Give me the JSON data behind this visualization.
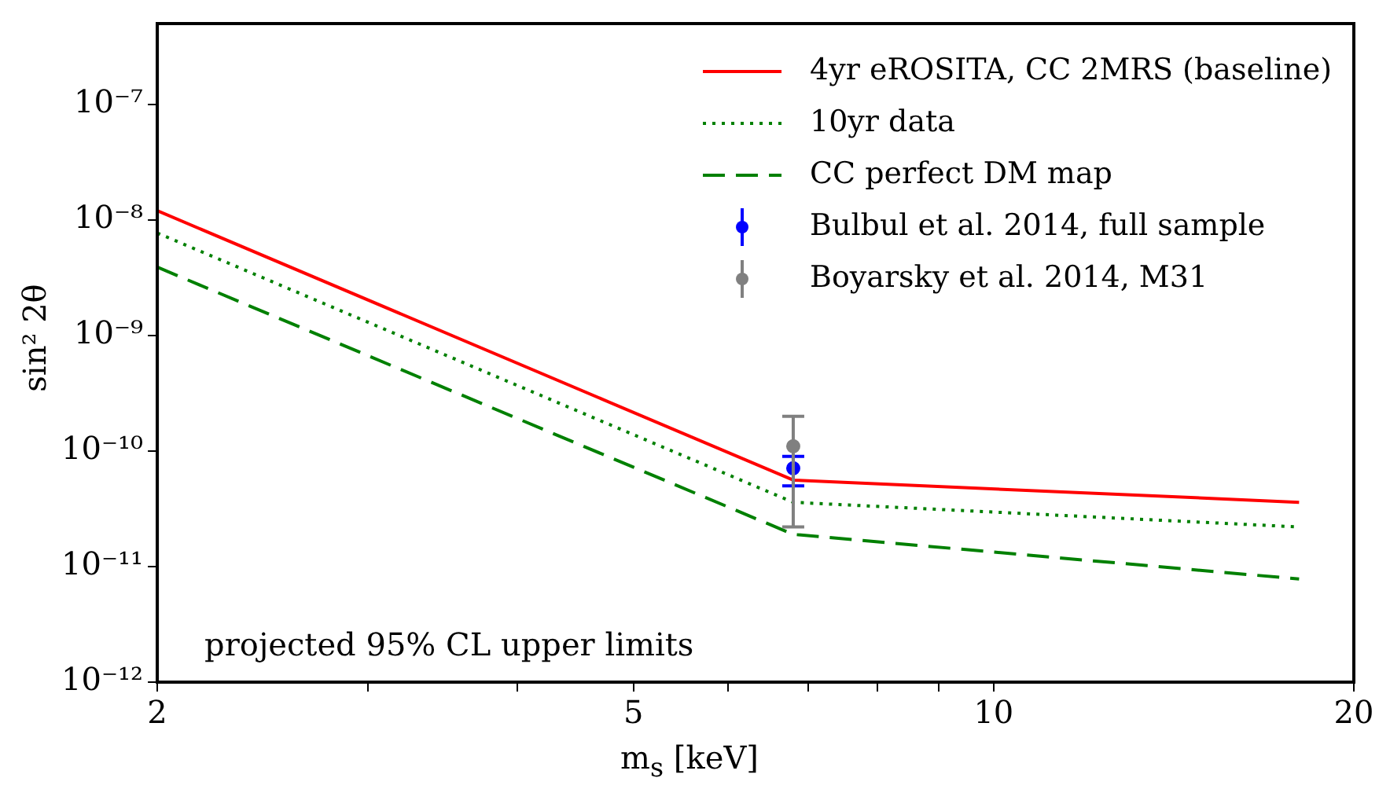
{
  "chart_data": {
    "type": "line",
    "xlabel": "m$_{s}$ [keV]",
    "ylabel": "sin² 2θ",
    "log": "xy",
    "legend": "top right",
    "grid": false,
    "xlim": [
      2,
      20
    ],
    "xticks": [
      2,
      {
        "value": 3,
        "label": null
      },
      {
        "value": 4,
        "label": null
      },
      5,
      {
        "value": 6,
        "label": null
      },
      {
        "value": 7,
        "label": null
      },
      {
        "value": 8,
        "label": null
      },
      {
        "value": 9,
        "label": null
      },
      10,
      20
    ],
    "ylim": [
      1e-12,
      5e-07
    ],
    "yticks": [
      {
        "value": 1e-12,
        "label": "10⁻¹²"
      },
      {
        "value": 1e-11,
        "label": "10⁻¹¹"
      },
      {
        "value": 1e-10,
        "label": "10⁻¹⁰"
      },
      {
        "value": 1e-09,
        "label": "10⁻⁹"
      },
      {
        "value": 1e-08,
        "label": "10⁻⁸"
      },
      {
        "value": 1e-07,
        "label": "10⁻⁷"
      }
    ],
    "annotations": [
      "projected 95% CL upper limits"
    ],
    "series": [
      {
        "name": "4yr eROSITA, CC 2MRS (baseline)",
        "type": "line",
        "line_style": "solid",
        "color": "#ff0000",
        "x": [
          2,
          6.8,
          18
        ],
        "values": [
          1.2e-08,
          5.6e-11,
          3.6e-11
        ]
      },
      {
        "name": "10yr data",
        "type": "line",
        "line_style": "dotted",
        "color": "#008000",
        "x": [
          2,
          6.8,
          18
        ],
        "values": [
          7.7e-09,
          3.6e-11,
          2.2e-11
        ]
      },
      {
        "name": "CC perfect DM map",
        "type": "line",
        "line_style": "dashed",
        "color": "#008000",
        "x": [
          2,
          6.8,
          18
        ],
        "values": [
          3.9e-09,
          1.9e-11,
          7.8e-12
        ]
      },
      {
        "name": "Bulbul et al. 2014, full sample",
        "type": "scatter",
        "marker": "circle",
        "color": "#0000ff",
        "x": [
          6.8
        ],
        "values": [
          7.1e-11
        ],
        "errors": [
          [
            5e-11,
            9e-11
          ]
        ]
      },
      {
        "name": "Boyarsky et al. 2014, M31",
        "type": "scatter",
        "marker": "circle",
        "color": "#808080",
        "x": [
          6.8
        ],
        "values": [
          1.1e-10
        ],
        "errors": [
          [
            2.2e-11,
            2e-10
          ]
        ]
      }
    ]
  }
}
